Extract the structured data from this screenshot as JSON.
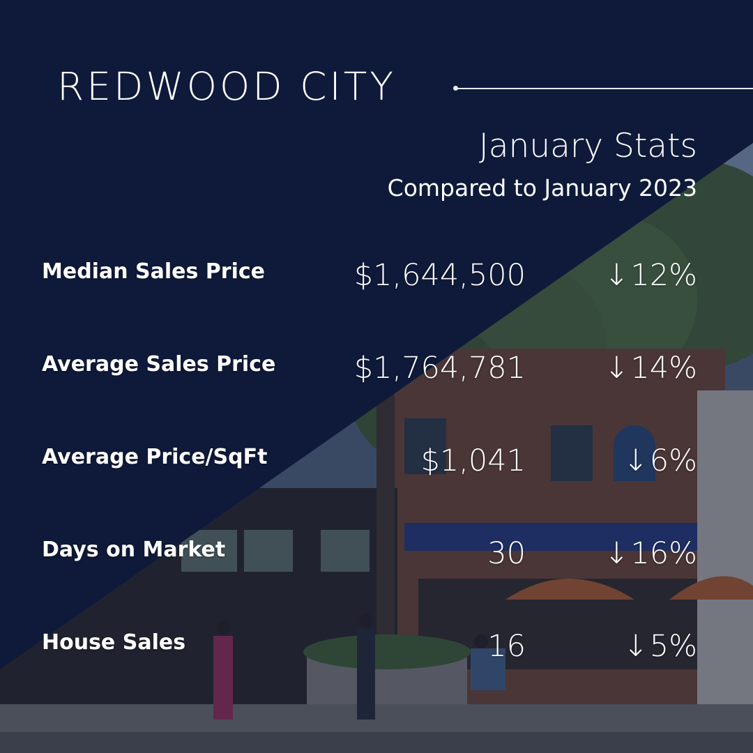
{
  "header": {
    "city": "REDWOOD CITY",
    "title": "January Stats",
    "subtitle": "Compared to January 2023"
  },
  "colors": {
    "navy": "#0f1a3a",
    "text": "#ffffff"
  },
  "stats": [
    {
      "label": "Median Sales Price",
      "value": "$1,644,500",
      "direction": "down-arrow-icon",
      "arrow": "↓",
      "change": "12%"
    },
    {
      "label": "Average Sales Price",
      "value": "$1,764,781",
      "direction": "down-arrow-icon",
      "arrow": "↓",
      "change": "14%"
    },
    {
      "label": "Average Price/SqFt",
      "value": "$1,041",
      "direction": "down-arrow-icon",
      "arrow": "↓",
      "change": "6%"
    },
    {
      "label": "Days on Market",
      "value": "30",
      "direction": "down-arrow-icon",
      "arrow": "↓",
      "change": "16%"
    },
    {
      "label": "House Sales",
      "value": "16",
      "direction": "down-arrow-icon",
      "arrow": "↓",
      "change": "5%"
    }
  ]
}
